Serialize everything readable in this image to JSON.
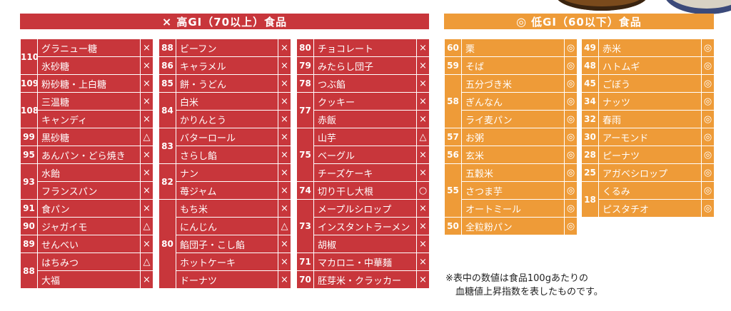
{
  "high_header": {
    "mark": "×",
    "title": "高GI（70以上）食品"
  },
  "low_header": {
    "mark": "◎",
    "title": "低GI（60以下）食品"
  },
  "marks": {
    "x": "×",
    "triangle": "△",
    "circle": "○",
    "double": "◎"
  },
  "note": {
    "line1": "※表中の数値は食品100gあたりの",
    "line2": "血糖値上昇指数を表したものです。"
  },
  "high_col1": [
    {
      "value": "110",
      "items": [
        {
          "name": "グラニュー糖",
          "mark": "×"
        },
        {
          "name": "氷砂糖",
          "mark": "×"
        }
      ]
    },
    {
      "value": "109",
      "items": [
        {
          "name": "粉砂糖・上白糖",
          "mark": "×"
        }
      ]
    },
    {
      "value": "108",
      "items": [
        {
          "name": "三温糖",
          "mark": "×"
        },
        {
          "name": "キャンディ",
          "mark": "×"
        }
      ]
    },
    {
      "value": "99",
      "items": [
        {
          "name": "黒砂糖",
          "mark": "△"
        }
      ]
    },
    {
      "value": "95",
      "items": [
        {
          "name": "あんパン・どら焼き",
          "mark": "×"
        }
      ]
    },
    {
      "value": "93",
      "items": [
        {
          "name": "水飴",
          "mark": "×"
        },
        {
          "name": "フランスパン",
          "mark": "×"
        }
      ]
    },
    {
      "value": "91",
      "items": [
        {
          "name": "食パン",
          "mark": "×"
        }
      ]
    },
    {
      "value": "90",
      "items": [
        {
          "name": "ジャガイモ",
          "mark": "△"
        }
      ]
    },
    {
      "value": "89",
      "items": [
        {
          "name": "せんべい",
          "mark": "×"
        }
      ]
    },
    {
      "value": "88",
      "items": [
        {
          "name": "はちみつ",
          "mark": "△"
        },
        {
          "name": "大福",
          "mark": "×"
        }
      ]
    }
  ],
  "high_col2": [
    {
      "value": "88",
      "items": [
        {
          "name": "ビーフン",
          "mark": "×"
        }
      ]
    },
    {
      "value": "86",
      "items": [
        {
          "name": "キャラメル",
          "mark": "×"
        }
      ]
    },
    {
      "value": "85",
      "items": [
        {
          "name": "餅・うどん",
          "mark": "×"
        }
      ]
    },
    {
      "value": "84",
      "items": [
        {
          "name": "白米",
          "mark": "×"
        },
        {
          "name": "かりんとう",
          "mark": "×"
        }
      ]
    },
    {
      "value": "83",
      "items": [
        {
          "name": "バターロール",
          "mark": "×"
        },
        {
          "name": "さらし餡",
          "mark": "×"
        }
      ]
    },
    {
      "value": "82",
      "items": [
        {
          "name": "ナン",
          "mark": "×"
        },
        {
          "name": "苺ジャム",
          "mark": "×"
        }
      ]
    },
    {
      "value": "80",
      "items": [
        {
          "name": "もち米",
          "mark": "×"
        },
        {
          "name": "にんじん",
          "mark": "△"
        },
        {
          "name": "餡団子・こし餡",
          "mark": "×"
        },
        {
          "name": "ホットケーキ",
          "mark": "×"
        },
        {
          "name": "ドーナツ",
          "mark": "×"
        }
      ]
    }
  ],
  "high_col3": [
    {
      "value": "80",
      "items": [
        {
          "name": "チョコレート",
          "mark": "×"
        }
      ]
    },
    {
      "value": "79",
      "items": [
        {
          "name": "みたらし団子",
          "mark": "×"
        }
      ]
    },
    {
      "value": "78",
      "items": [
        {
          "name": "つぶ餡",
          "mark": "×"
        }
      ]
    },
    {
      "value": "77",
      "items": [
        {
          "name": "クッキー",
          "mark": "×"
        },
        {
          "name": "赤飯",
          "mark": "×"
        }
      ]
    },
    {
      "value": "75",
      "items": [
        {
          "name": "山芋",
          "mark": "△"
        },
        {
          "name": "ベーグル",
          "mark": "×"
        },
        {
          "name": "チーズケーキ",
          "mark": "×"
        }
      ]
    },
    {
      "value": "74",
      "items": [
        {
          "name": "切り干し大根",
          "mark": "○"
        }
      ]
    },
    {
      "value": "73",
      "items": [
        {
          "name": "メープルシロップ",
          "mark": "×"
        },
        {
          "name": "インスタントラーメン",
          "mark": "×"
        },
        {
          "name": "胡椒",
          "mark": "×"
        }
      ]
    },
    {
      "value": "71",
      "items": [
        {
          "name": "マカロニ・中華麺",
          "mark": "×"
        }
      ]
    },
    {
      "value": "70",
      "items": [
        {
          "name": "胚芽米・クラッカー",
          "mark": "×"
        }
      ]
    }
  ],
  "low_col1": [
    {
      "value": "60",
      "items": [
        {
          "name": "栗",
          "mark": "◎"
        }
      ]
    },
    {
      "value": "59",
      "items": [
        {
          "name": "そば",
          "mark": "◎"
        }
      ]
    },
    {
      "value": "58",
      "items": [
        {
          "name": "五分づき米",
          "mark": "◎"
        },
        {
          "name": "ぎんなん",
          "mark": "◎"
        },
        {
          "name": "ライ麦パン",
          "mark": "◎"
        }
      ]
    },
    {
      "value": "57",
      "items": [
        {
          "name": "お粥",
          "mark": "◎"
        }
      ]
    },
    {
      "value": "56",
      "items": [
        {
          "name": "玄米",
          "mark": "◎"
        }
      ]
    },
    {
      "value": "55",
      "items": [
        {
          "name": "五穀米",
          "mark": "◎"
        },
        {
          "name": "さつま芋",
          "mark": "◎"
        },
        {
          "name": "オートミール",
          "mark": "◎"
        }
      ]
    },
    {
      "value": "50",
      "items": [
        {
          "name": "全粒粉パン",
          "mark": "◎"
        }
      ]
    }
  ],
  "low_col2": [
    {
      "value": "49",
      "items": [
        {
          "name": "赤米",
          "mark": "◎"
        }
      ]
    },
    {
      "value": "48",
      "items": [
        {
          "name": "ハトムギ",
          "mark": "◎"
        }
      ]
    },
    {
      "value": "45",
      "items": [
        {
          "name": "ごぼう",
          "mark": "◎"
        }
      ]
    },
    {
      "value": "34",
      "items": [
        {
          "name": "ナッツ",
          "mark": "◎"
        }
      ]
    },
    {
      "value": "32",
      "items": [
        {
          "name": "春雨",
          "mark": "◎"
        }
      ]
    },
    {
      "value": "30",
      "items": [
        {
          "name": "アーモンド",
          "mark": "◎"
        }
      ]
    },
    {
      "value": "28",
      "items": [
        {
          "name": "ピーナツ",
          "mark": "◎"
        }
      ]
    },
    {
      "value": "25",
      "items": [
        {
          "name": "アガベシロップ",
          "mark": "◎"
        }
      ]
    },
    {
      "value": "18",
      "items": [
        {
          "name": "くるみ",
          "mark": "◎"
        },
        {
          "name": "ピスタチオ",
          "mark": "◎"
        }
      ]
    }
  ]
}
